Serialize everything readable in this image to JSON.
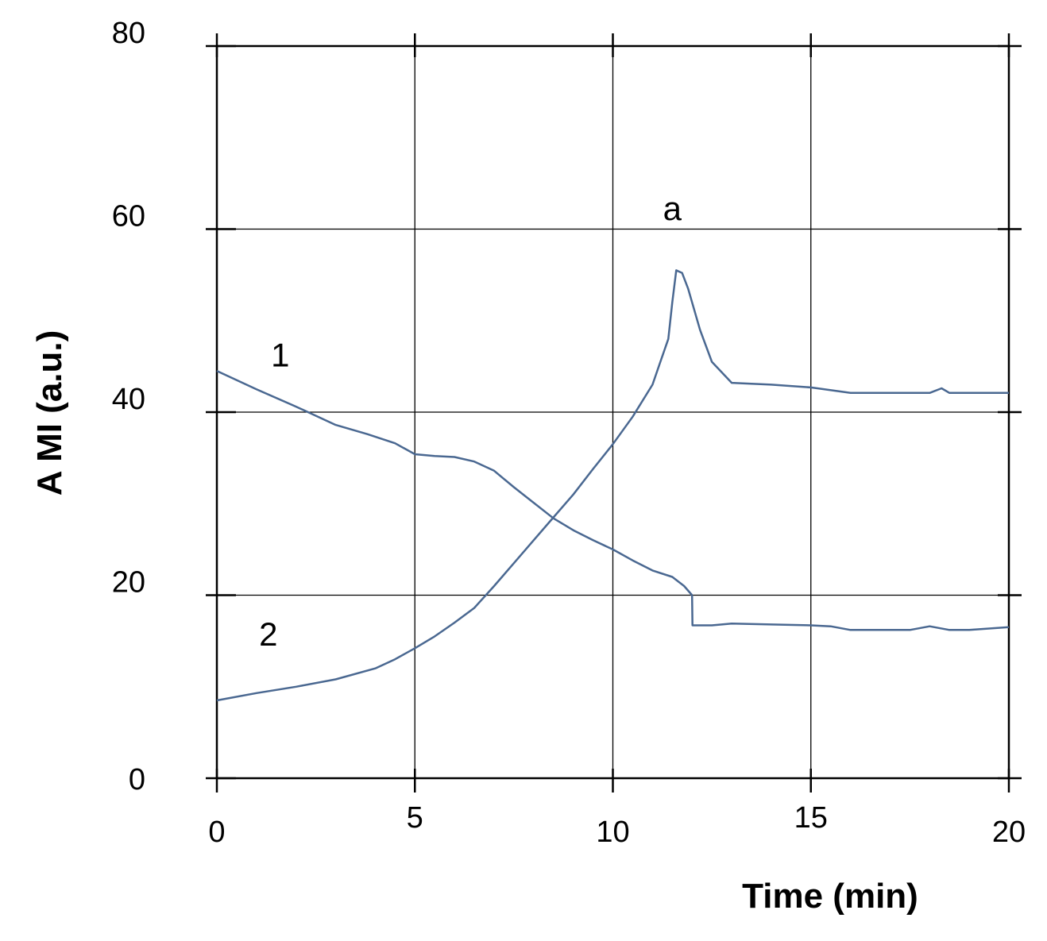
{
  "chart_data": {
    "type": "line",
    "title": "",
    "xlabel": "Time (min)",
    "ylabel": "A MI (a.u.)",
    "xlim": [
      0,
      20
    ],
    "ylim": [
      0,
      80
    ],
    "x_ticks": [
      0,
      5,
      10,
      15,
      20
    ],
    "y_ticks": [
      0,
      20,
      40,
      60,
      80
    ],
    "x_tick_labels": [
      "0",
      "5",
      "10",
      "15",
      "20"
    ],
    "y_tick_labels": [
      "0",
      "20",
      "40",
      "60",
      "80"
    ],
    "grid": true,
    "legend": "none",
    "colors": {
      "series": "#4a6891"
    },
    "annotations": [
      {
        "id": "label-a",
        "text": "a",
        "x": 11.5,
        "y": 61
      },
      {
        "id": "label-1",
        "text": "1",
        "x": 1.6,
        "y": 45
      },
      {
        "id": "label-2",
        "text": "2",
        "x": 1.3,
        "y": 14.5
      }
    ],
    "series": [
      {
        "id": "curve-1",
        "x": [
          0,
          1,
          2,
          3,
          3.8,
          4.5,
          5,
          5.5,
          6,
          6.5,
          7,
          7.5,
          8,
          8.5,
          9,
          9.5,
          10,
          10.5,
          11,
          11.5,
          11.8,
          12,
          12.01,
          12.5,
          13,
          14,
          15,
          15.5,
          16,
          17,
          17.5,
          18,
          18.5,
          19,
          20
        ],
        "y": [
          44.5,
          42.5,
          40.6,
          38.6,
          37.6,
          36.6,
          35.4,
          35.2,
          35.1,
          34.6,
          33.6,
          31.8,
          30.1,
          28.4,
          27.1,
          26.0,
          25.0,
          23.8,
          22.7,
          22.0,
          21.0,
          20.0,
          16.7,
          16.7,
          16.9,
          16.8,
          16.7,
          16.6,
          16.2,
          16.2,
          16.2,
          16.6,
          16.2,
          16.2,
          16.5
        ]
      },
      {
        "id": "curve-2",
        "x": [
          0,
          1,
          2,
          3,
          4,
          4.5,
          5,
          5.5,
          6,
          6.5,
          7,
          7.5,
          8,
          8.5,
          9,
          9.5,
          10,
          10.5,
          11,
          11.2,
          11.4,
          11.5,
          11.6,
          11.75,
          11.9,
          12.2,
          12.5,
          13,
          14,
          15,
          16,
          17,
          18,
          18.3,
          18.5,
          19,
          20
        ],
        "y": [
          8.5,
          9.3,
          10.0,
          10.8,
          12.0,
          13.0,
          14.2,
          15.5,
          17.0,
          18.6,
          21.0,
          23.5,
          26.0,
          28.5,
          31.0,
          33.8,
          36.5,
          39.5,
          43.0,
          45.5,
          48.0,
          52.0,
          55.5,
          55.2,
          53.5,
          49.0,
          45.5,
          43.2,
          43.0,
          42.7,
          42.1,
          42.1,
          42.1,
          42.6,
          42.1,
          42.1,
          42.1
        ]
      }
    ]
  }
}
